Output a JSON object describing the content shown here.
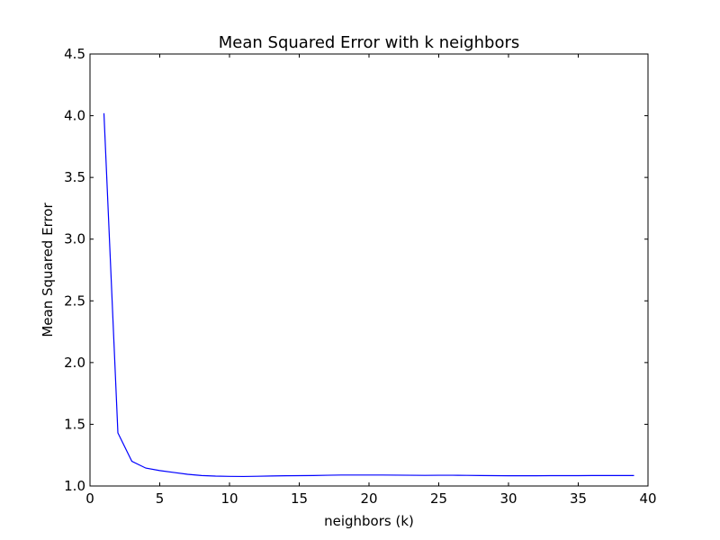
{
  "chart_data": {
    "type": "line",
    "title": "Mean Squared Error with k neighbors",
    "xlabel": "neighbors (k)",
    "ylabel": "Mean Squared Error",
    "xlim": [
      0,
      40
    ],
    "ylim": [
      1.0,
      4.5
    ],
    "xticks": [
      "0",
      "5",
      "10",
      "15",
      "20",
      "25",
      "30",
      "35",
      "40"
    ],
    "yticks": [
      "1.0",
      "1.5",
      "2.0",
      "2.5",
      "3.0",
      "3.5",
      "4.0",
      "4.5"
    ],
    "grid": false,
    "series": [
      {
        "color": "#0000ff",
        "x": [
          1,
          2,
          3,
          4,
          5,
          6,
          7,
          8,
          9,
          10,
          11,
          12,
          13,
          14,
          15,
          16,
          17,
          18,
          19,
          20,
          21,
          22,
          23,
          24,
          25,
          26,
          27,
          28,
          29,
          30,
          31,
          32,
          33,
          34,
          35,
          36,
          37,
          38,
          39
        ],
        "values": [
          4.02,
          1.43,
          1.2,
          1.145,
          1.125,
          1.11,
          1.095,
          1.085,
          1.08,
          1.078,
          1.077,
          1.079,
          1.081,
          1.083,
          1.084,
          1.085,
          1.087,
          1.089,
          1.089,
          1.089,
          1.089,
          1.088,
          1.087,
          1.086,
          1.087,
          1.087,
          1.086,
          1.085,
          1.084,
          1.083,
          1.083,
          1.083,
          1.084,
          1.084,
          1.084,
          1.085,
          1.085,
          1.085,
          1.085
        ]
      }
    ]
  }
}
